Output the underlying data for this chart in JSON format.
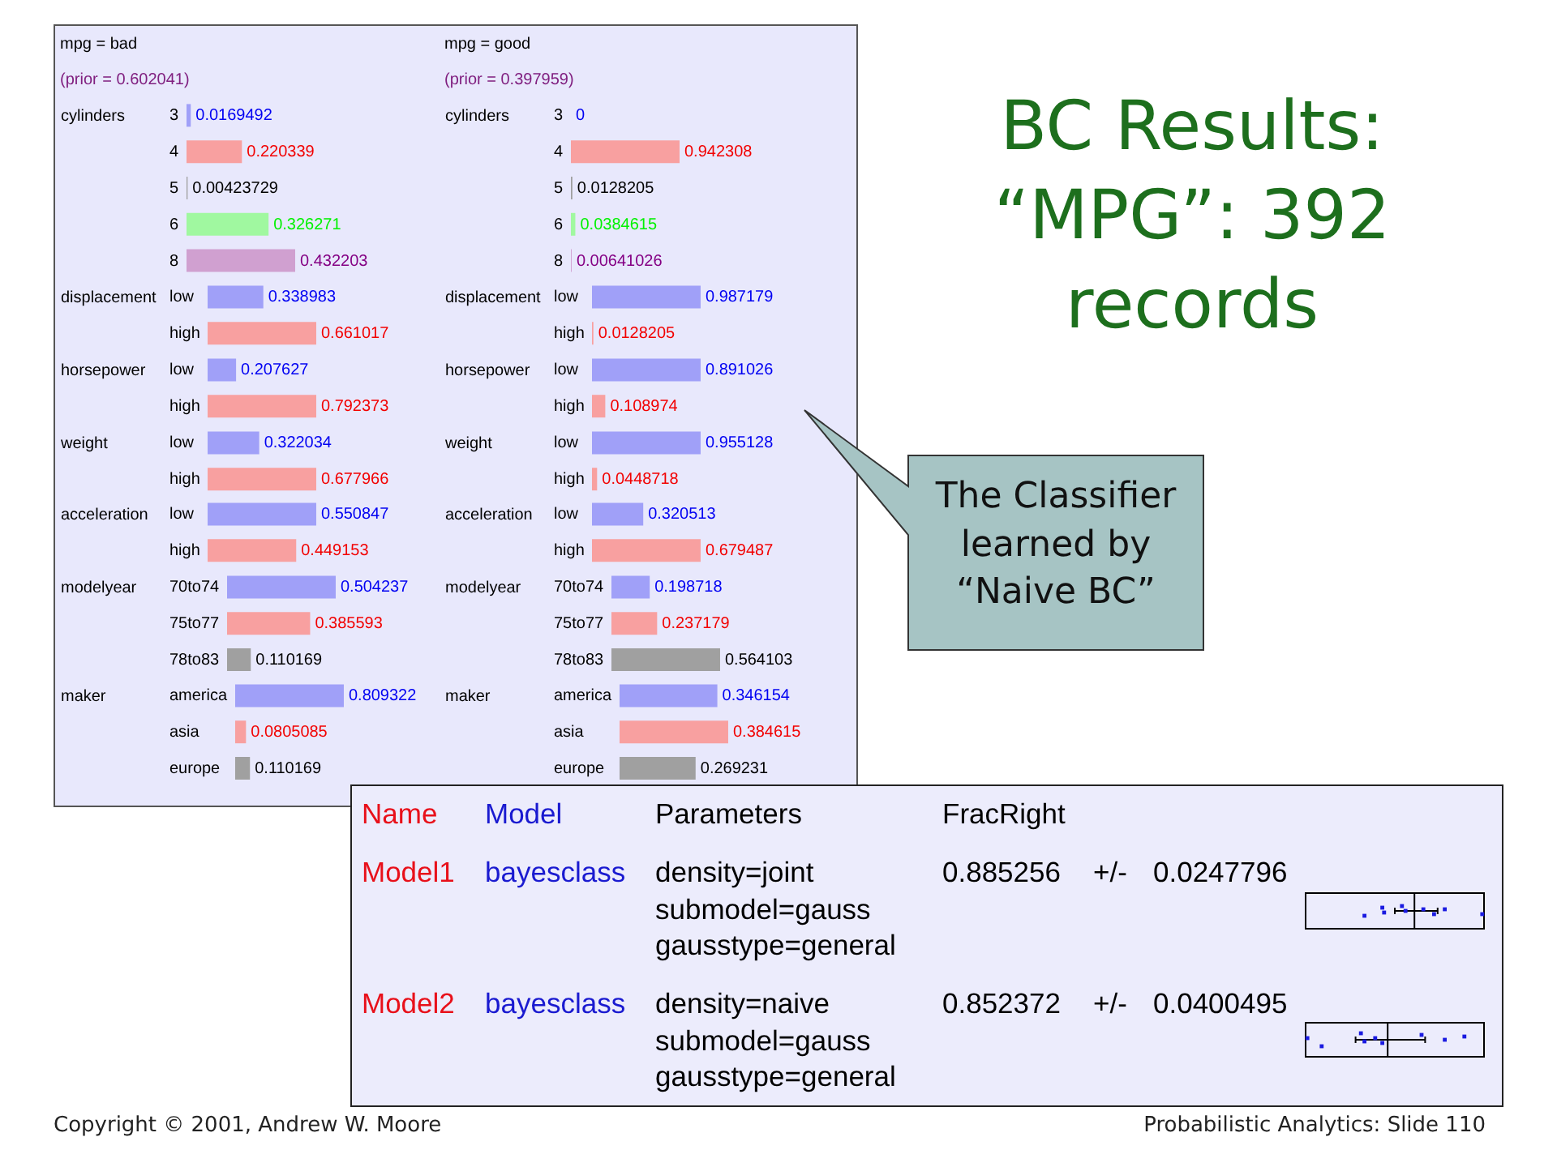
{
  "chart_data": [
    {
      "type": "bar",
      "orientation": "horizontal",
      "title": "mpg = bad",
      "subtitle": "(prior = 0.602041)",
      "ylabel": "cylinders",
      "categories": [
        "3",
        "4",
        "5",
        "6",
        "8"
      ],
      "values": [
        0.0169492,
        0.220339,
        0.00423729,
        0.326271,
        0.432203
      ],
      "colors": [
        "#a0a0f8",
        "#f8a0a0",
        "#a0a0a0",
        "#a0f8a0",
        "#d0a0d0"
      ],
      "data_labels": true
    },
    {
      "type": "bar",
      "orientation": "horizontal",
      "ylabel": "displacement",
      "categories": [
        "low",
        "high"
      ],
      "values": [
        0.338983,
        0.661017
      ],
      "colors": [
        "#a0a0f8",
        "#f8a0a0"
      ],
      "data_labels": true
    },
    {
      "type": "bar",
      "orientation": "horizontal",
      "ylabel": "horsepower",
      "categories": [
        "low",
        "high"
      ],
      "values": [
        0.207627,
        0.792373
      ],
      "colors": [
        "#a0a0f8",
        "#f8a0a0"
      ],
      "data_labels": true
    },
    {
      "type": "bar",
      "orientation": "horizontal",
      "ylabel": "weight",
      "categories": [
        "low",
        "high"
      ],
      "values": [
        0.322034,
        0.677966
      ],
      "colors": [
        "#a0a0f8",
        "#f8a0a0"
      ],
      "data_labels": true
    },
    {
      "type": "bar",
      "orientation": "horizontal",
      "ylabel": "acceleration",
      "categories": [
        "low",
        "high"
      ],
      "values": [
        0.550847,
        0.449153
      ],
      "colors": [
        "#a0a0f8",
        "#f8a0a0"
      ],
      "data_labels": true
    },
    {
      "type": "bar",
      "orientation": "horizontal",
      "ylabel": "modelyear",
      "categories": [
        "70to74",
        "75to77",
        "78to83"
      ],
      "values": [
        0.504237,
        0.385593,
        0.110169
      ],
      "colors": [
        "#a0a0f8",
        "#f8a0a0",
        "#a0a0a0"
      ],
      "data_labels": true
    },
    {
      "type": "bar",
      "orientation": "horizontal",
      "ylabel": "maker",
      "categories": [
        "america",
        "asia",
        "europe"
      ],
      "values": [
        0.809322,
        0.0805085,
        0.110169
      ],
      "colors": [
        "#a0a0f8",
        "#f8a0a0",
        "#a0a0a0"
      ],
      "data_labels": true
    },
    {
      "type": "bar",
      "orientation": "horizontal",
      "title": "mpg = good",
      "subtitle": "(prior = 0.397959)",
      "ylabel": "cylinders",
      "categories": [
        "3",
        "4",
        "5",
        "6",
        "8"
      ],
      "values": [
        0,
        0.942308,
        0.0128205,
        0.0384615,
        0.00641026
      ],
      "colors": [
        "#a0a0f8",
        "#f8a0a0",
        "#a0a0a0",
        "#a0f8a0",
        "#d0a0d0"
      ],
      "data_labels": true
    },
    {
      "type": "bar",
      "orientation": "horizontal",
      "ylabel": "displacement",
      "categories": [
        "low",
        "high"
      ],
      "values": [
        0.987179,
        0.0128205
      ],
      "colors": [
        "#a0a0f8",
        "#f8a0a0"
      ],
      "data_labels": true
    },
    {
      "type": "bar",
      "orientation": "horizontal",
      "ylabel": "horsepower",
      "categories": [
        "low",
        "high"
      ],
      "values": [
        0.891026,
        0.108974
      ],
      "colors": [
        "#a0a0f8",
        "#f8a0a0"
      ],
      "data_labels": true
    },
    {
      "type": "bar",
      "orientation": "horizontal",
      "ylabel": "weight",
      "categories": [
        "low",
        "high"
      ],
      "values": [
        0.955128,
        0.0448718
      ],
      "colors": [
        "#a0a0f8",
        "#f8a0a0"
      ],
      "data_labels": true
    },
    {
      "type": "bar",
      "orientation": "horizontal",
      "ylabel": "acceleration",
      "categories": [
        "low",
        "high"
      ],
      "values": [
        0.320513,
        0.679487
      ],
      "colors": [
        "#a0a0f8",
        "#f8a0a0"
      ],
      "data_labels": true
    },
    {
      "type": "bar",
      "orientation": "horizontal",
      "ylabel": "modelyear",
      "categories": [
        "70to74",
        "75to77",
        "78to83"
      ],
      "values": [
        0.198718,
        0.237179,
        0.564103
      ],
      "colors": [
        "#a0a0f8",
        "#f8a0a0",
        "#a0a0a0"
      ],
      "data_labels": true
    },
    {
      "type": "bar",
      "orientation": "horizontal",
      "ylabel": "maker",
      "categories": [
        "america",
        "asia",
        "europe"
      ],
      "values": [
        0.346154,
        0.384615,
        0.269231
      ],
      "colors": [
        "#a0a0f8",
        "#f8a0a0",
        "#a0a0a0"
      ],
      "data_labels": true
    },
    {
      "type": "other",
      "title": "BC Results: “MPG”: 392 records",
      "annotations": [
        "The Classifier learned by “Naive BC”",
        "Copyright © 2001, Andrew W. Moore",
        "Probabilistic Analytics: Slide 110"
      ]
    },
    {
      "type": "other",
      "annotations": [
        "Name",
        "Model",
        "Parameters",
        "FracRight",
        "Model1",
        "bayesclass",
        "density=joint\nsubmodel=gauss\ngausstype=general",
        "0.885256",
        "+/-",
        "0.0247796",
        "Model2",
        "bayesclass",
        "density=naive\nsubmodel=gauss\ngausstype=general",
        "0.852372",
        "+/-",
        "0.0400495"
      ]
    }
  ]
}
